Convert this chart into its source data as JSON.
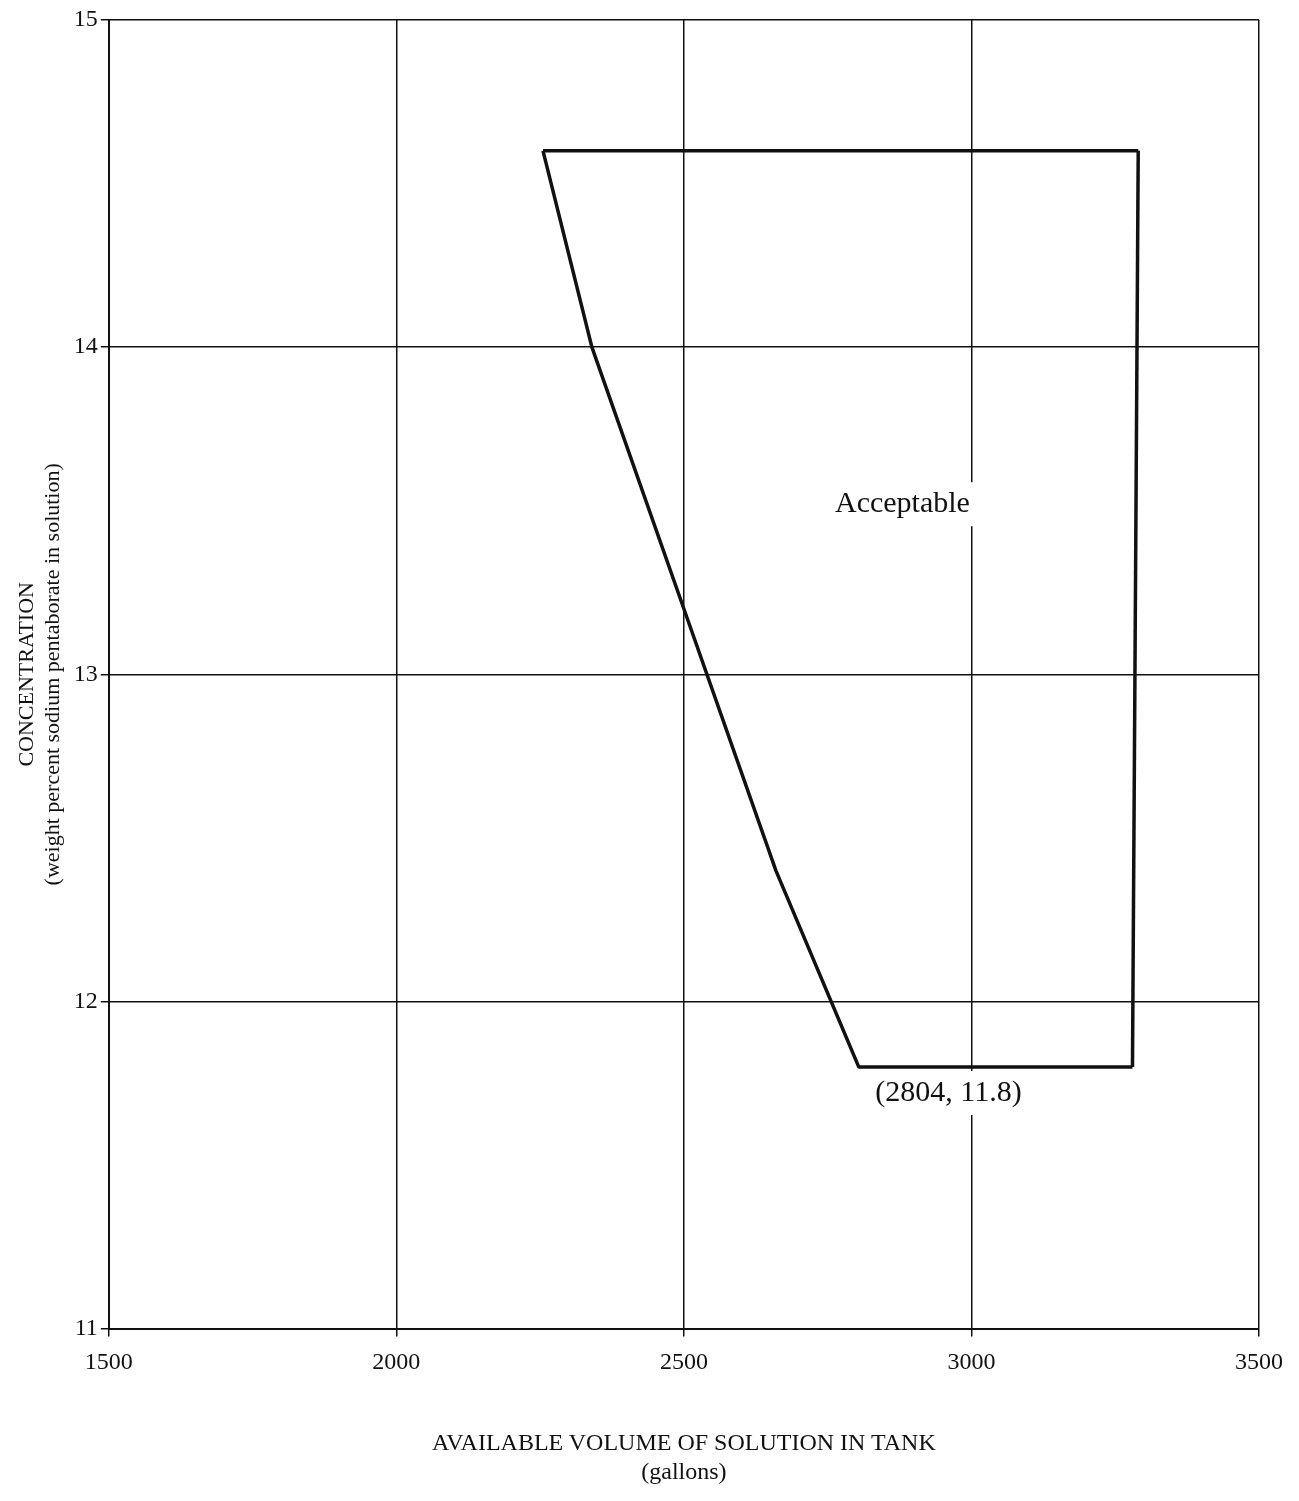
{
  "chart_data": {
    "type": "line",
    "xlabel": "AVAILABLE VOLUME OF SOLUTION IN TANK\n(gallons)",
    "ylabel": "CONCENTRATION\n(weight percent sodium pentaborate in solution)",
    "series": [
      {
        "x": [
          2255,
          2340,
          2510,
          2660,
          2804,
          3280
        ],
        "values": [
          14.6,
          14.0,
          13.15,
          12.4,
          11.8,
          11.8
        ],
        "color": "#111111"
      },
      {
        "x": [
          2255,
          3290
        ],
        "values": [
          14.6,
          14.6
        ],
        "color": "#111111"
      },
      {
        "x": [
          3280,
          3290
        ],
        "values": [
          11.8,
          14.6
        ],
        "color": "#111111"
      }
    ],
    "xlim": [
      1500,
      3500
    ],
    "xticks": [
      1500,
      2000,
      2500,
      3000,
      3500
    ],
    "ylim": [
      11,
      15
    ],
    "yticks": [
      11,
      12,
      13,
      14,
      15
    ],
    "grid": true,
    "marker": "none",
    "line_style": "solid",
    "annotations": [
      "Acceptable",
      "(2804, 11.8)"
    ]
  }
}
